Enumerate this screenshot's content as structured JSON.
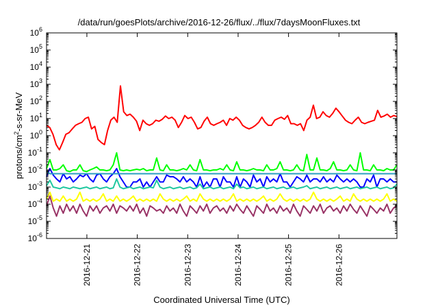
{
  "chart_data": {
    "type": "line",
    "title": "/data/run/goesPlots/archive/2016-12-26/flux/../flux/7daysMoonFluxes.txt",
    "xlabel": "Coordinated Universal Time (UTC)",
    "ylabel": {
      "prefix": "protons/cm",
      "sup": "2",
      "suffix": "-s-sr-MeV"
    },
    "yscale": "log",
    "ylim": [
      1e-06,
      1000000.0
    ],
    "xlim_days": [
      0,
      6.95
    ],
    "y_ticks": [
      {
        "base": "10",
        "exp": "-6",
        "value": 1e-06
      },
      {
        "base": "10",
        "exp": "-5",
        "value": 1e-05
      },
      {
        "base": "10",
        "exp": "-4",
        "value": 0.0001
      },
      {
        "base": "10",
        "exp": "-3",
        "value": 0.001
      },
      {
        "base": "10",
        "exp": "-2",
        "value": 0.01
      },
      {
        "base": "10",
        "exp": "-1",
        "value": 0.1
      },
      {
        "base": "10",
        "exp": "0",
        "value": 1
      },
      {
        "base": "10",
        "exp": "1",
        "value": 10
      },
      {
        "base": "10",
        "exp": "2",
        "value": 100
      },
      {
        "base": "10",
        "exp": "3",
        "value": 1000
      },
      {
        "base": "10",
        "exp": "4",
        "value": 10000
      },
      {
        "base": "10",
        "exp": "5",
        "value": 100000
      },
      {
        "base": "10",
        "exp": "6",
        "value": 1000000
      }
    ],
    "x_ticks": [
      {
        "label": "2016-12-21",
        "day": 0.8
      },
      {
        "label": "2016-12-22",
        "day": 1.8
      },
      {
        "label": "2016-12-23",
        "day": 2.8
      },
      {
        "label": "2016-12-24",
        "day": 3.8
      },
      {
        "label": "2016-12-25",
        "day": 4.8
      },
      {
        "label": "2016-12-26",
        "day": 5.8
      }
    ],
    "grid": false,
    "series": [
      {
        "color": "#ff0000",
        "values": [
          4,
          3,
          1.2,
          0.3,
          0.15,
          0.4,
          1.2,
          1.5,
          2.5,
          4,
          5,
          6,
          10,
          12,
          2.5,
          3.5,
          0.6,
          0.4,
          0.3,
          2,
          8,
          12,
          6,
          800,
          25,
          15,
          18,
          12,
          7,
          2,
          8,
          5,
          4,
          5,
          8,
          7,
          9,
          14,
          10,
          12,
          8,
          3,
          6,
          15,
          10,
          12,
          6,
          2.5,
          3,
          7,
          12,
          5,
          4,
          5,
          6,
          8,
          4,
          10,
          8,
          12,
          8,
          4,
          3,
          2.5,
          3,
          4,
          6,
          12,
          6,
          4,
          4,
          8,
          10,
          12,
          9,
          15,
          5,
          5,
          4,
          5,
          2,
          8,
          12,
          60,
          10,
          12,
          25,
          15,
          12,
          20,
          40,
          25,
          14,
          8,
          6,
          5,
          8,
          12,
          6,
          5,
          6,
          7,
          8,
          30,
          12,
          14,
          18,
          12,
          15,
          13
        ]
      },
      {
        "color": "#00ff00",
        "values": [
          0.012,
          0.04,
          0.01,
          0.01,
          0.012,
          0.02,
          0.009,
          0.008,
          0.01,
          0.01,
          0.02,
          0.009,
          0.008,
          0.01,
          0.012,
          0.015,
          0.01,
          0.01,
          0.009,
          0.01,
          0.02,
          0.1,
          0.01,
          0.009,
          0.01,
          0.009,
          0.01,
          0.011,
          0.01,
          0.012,
          0.009,
          0.01,
          0.01,
          0.05,
          0.01,
          0.009,
          0.02,
          0.01,
          0.01,
          0.009,
          0.01,
          0.012,
          0.01,
          0.02,
          0.01,
          0.009,
          0.04,
          0.01,
          0.01,
          0.009,
          0.01,
          0.01,
          0.012,
          0.01,
          0.02,
          0.01,
          0.009,
          0.03,
          0.01,
          0.01,
          0.009,
          0.01,
          0.012,
          0.01,
          0.01,
          0.009,
          0.02,
          0.01,
          0.01,
          0.012,
          0.03,
          0.01,
          0.01,
          0.009,
          0.01,
          0.02,
          0.01,
          0.009,
          0.08,
          0.01,
          0.01,
          0.05,
          0.01,
          0.01,
          0.009,
          0.012,
          0.03,
          0.01,
          0.01,
          0.009,
          0.01,
          0.02,
          0.01,
          0.009,
          0.1,
          0.01,
          0.01,
          0.009,
          0.02,
          0.01,
          0.01,
          0.009,
          0.012,
          0.01,
          0.01,
          0.02
        ]
      },
      {
        "color": "#0000ff",
        "values": [
          0.004,
          0.012,
          0.005,
          0.003,
          0.002,
          0.006,
          0.003,
          0.004,
          0.002,
          0.003,
          0.005,
          0.004,
          0.006,
          0.003,
          0.002,
          0.005,
          0.006,
          0.003,
          0.002,
          0.004,
          0.006,
          0.012,
          0.004,
          0.002,
          0.001,
          0.001,
          0.002,
          0.002,
          0.003,
          0.001,
          0.002,
          0.001,
          0.002,
          0.004,
          0.002,
          0.002,
          0.005,
          0.004,
          0.004,
          0.003,
          0.002,
          0.004,
          0.002,
          0.003,
          0.002,
          0.001,
          0.004,
          0.001,
          0.002,
          0.001,
          0.003,
          0.003,
          0.001,
          0.004,
          0.002,
          0.002,
          0.001,
          0.004,
          0.001,
          0.003,
          0.002,
          0.001,
          0.005,
          0.002,
          0.003,
          0.001,
          0.004,
          0.002,
          0.003,
          0.002,
          0.006,
          0.002,
          0.002,
          0.001,
          0.002,
          0.004,
          0.003,
          0.002,
          0.005,
          0.002,
          0.003,
          0.003,
          0.002,
          0.004,
          0.002,
          0.003,
          0.002,
          0.005,
          0.003,
          0.002,
          0.003,
          0.002,
          0.003,
          0.002,
          0.001,
          0.001,
          0.003,
          0.002,
          0.005,
          0.001,
          0.003,
          0.003,
          0.002,
          0.003,
          0.002,
          0.002
        ]
      },
      {
        "color": "#2a9ec0",
        "values": [
          0.008,
          0.006,
          0.006,
          0.006,
          0.006,
          0.006,
          0.006,
          0.006,
          0.006,
          0.006,
          0.006,
          0.006,
          0.006,
          0.006,
          0.006,
          0.006,
          0.006,
          0.006,
          0.006,
          0.006,
          0.006,
          0.006,
          0.006,
          0.006,
          0.006,
          0.006,
          0.006,
          0.006,
          0.006,
          0.006,
          0.006,
          0.006,
          0.006,
          0.006,
          0.006,
          0.006,
          0.006,
          0.006,
          0.006,
          0.006,
          0.006,
          0.006,
          0.006,
          0.006,
          0.006,
          0.006,
          0.006,
          0.006,
          0.006,
          0.006,
          0.006,
          0.006,
          0.006,
          0.006,
          0.006,
          0.006,
          0.006,
          0.006,
          0.006,
          0.006,
          0.006,
          0.006,
          0.006,
          0.006,
          0.006,
          0.006,
          0.006,
          0.006,
          0.006,
          0.006,
          0.006,
          0.006,
          0.006,
          0.006,
          0.006,
          0.006,
          0.006,
          0.006,
          0.006,
          0.006,
          0.006,
          0.006,
          0.006,
          0.006,
          0.006,
          0.006,
          0.006,
          0.006,
          0.006,
          0.006,
          0.006,
          0.006,
          0.006,
          0.006,
          0.006,
          0.006,
          0.006,
          0.006,
          0.006,
          0.006,
          0.006,
          0.006,
          0.006,
          0.006,
          0.006,
          0.006
        ]
      },
      {
        "color": "#20c8a0",
        "values": [
          0.0012,
          0.0025,
          0.001,
          0.0009,
          0.0008,
          0.001,
          0.0009,
          0.0008,
          0.001,
          0.0009,
          0.0008,
          0.0009,
          0.001,
          0.0008,
          0.0009,
          0.001,
          0.0008,
          0.0009,
          0.001,
          0.0008,
          0.0009,
          0.003,
          0.001,
          0.0008,
          0.0009,
          0.001,
          0.0008,
          0.0009,
          0.001,
          0.0008,
          0.0009,
          0.001,
          0.0009,
          0.0025,
          0.001,
          0.0008,
          0.0009,
          0.001,
          0.0008,
          0.0009,
          0.001,
          0.0008,
          0.0009,
          0.001,
          0.0008,
          0.0009,
          0.0015,
          0.0008,
          0.0009,
          0.001,
          0.0008,
          0.0009,
          0.001,
          0.0008,
          0.0009,
          0.001,
          0.0008,
          0.0015,
          0.0009,
          0.001,
          0.0008,
          0.0009,
          0.001,
          0.0008,
          0.0009,
          0.001,
          0.0008,
          0.0009,
          0.001,
          0.0008,
          0.0009,
          0.001,
          0.0008,
          0.0009,
          0.001,
          0.0008,
          0.0009,
          0.001,
          0.0012,
          0.0008,
          0.0009,
          0.001,
          0.0008,
          0.0009,
          0.001,
          0.0008,
          0.0009,
          0.001,
          0.0008,
          0.0009,
          0.001,
          0.0008,
          0.0009,
          0.001,
          0.0008,
          0.0009,
          0.001,
          0.0008,
          0.0009,
          0.001,
          0.0008,
          0.0009,
          0.001,
          0.0008,
          0.0009,
          0.0015
        ]
      },
      {
        "color": "#ffff00",
        "values": [
          0.0002,
          0.0005,
          0.00015,
          0.0002,
          0.00015,
          0.0003,
          0.00015,
          0.0002,
          0.00015,
          0.0002,
          0.0005,
          0.00015,
          0.0002,
          0.00015,
          0.0002,
          0.00015,
          0.0002,
          0.0004,
          0.00015,
          0.0002,
          0.00015,
          0.0003,
          0.00015,
          0.0002,
          0.00015,
          0.0002,
          0.0003,
          0.00015,
          0.0002,
          0.00015,
          0.0002,
          0.00015,
          0.0002,
          0.00015,
          0.0004,
          0.0002,
          0.00015,
          0.0002,
          0.00015,
          0.0002,
          0.00015,
          0.0002,
          0.0003,
          0.00015,
          0.0002,
          0.00015,
          0.0004,
          0.0002,
          0.00015,
          0.0002,
          0.00015,
          0.0002,
          0.00015,
          0.0002,
          0.00015,
          0.0002,
          0.0004,
          0.00015,
          0.0002,
          0.00015,
          0.0002,
          0.00015,
          0.0002,
          0.00015,
          0.0002,
          0.0003,
          0.00015,
          0.0002,
          0.00015,
          0.0002,
          0.0004,
          0.0002,
          0.00015,
          0.0002,
          0.00015,
          0.0002,
          0.00015,
          0.0002,
          0.00015,
          0.0002,
          0.0005,
          0.0002,
          0.00015,
          0.0002,
          0.00015,
          0.0002,
          0.00015,
          0.0002,
          0.0003,
          0.00015,
          0.0002,
          0.00015,
          0.0004,
          0.0002,
          0.00015,
          0.0002,
          0.00015,
          0.0002,
          0.00015,
          0.0002,
          0.00015,
          0.0002,
          0.0004,
          0.00015,
          0.0002,
          0.00015
        ]
      },
      {
        "color": "#993366",
        "values": [
          8e-05,
          0.0003,
          6e-05,
          2e-05,
          8e-05,
          3e-05,
          0.0001,
          4e-05,
          8e-05,
          3e-05,
          0.0001,
          4e-05,
          2e-05,
          8e-05,
          4e-05,
          8e-05,
          3e-05,
          6e-05,
          8e-05,
          4e-05,
          0.0001,
          3e-05,
          8e-05,
          6e-05,
          4e-05,
          8e-05,
          4e-05,
          0.0001,
          3e-05,
          6e-05,
          2e-05,
          8e-05,
          6e-05,
          4e-05,
          5e-05,
          3e-05,
          8e-05,
          4e-05,
          6e-05,
          3e-05,
          0.0001,
          4e-05,
          2e-05,
          8e-05,
          5e-05,
          3e-05,
          8e-05,
          4e-05,
          0.0001,
          3e-05,
          6e-05,
          8e-05,
          4e-05,
          6e-05,
          3e-05,
          8e-05,
          4e-05,
          0.0001,
          5e-05,
          3e-05,
          8e-05,
          4e-05,
          2e-05,
          8e-05,
          5e-05,
          3e-05,
          0.0001,
          4e-05,
          6e-05,
          3e-05,
          8e-05,
          4e-05,
          6e-05,
          3e-05,
          0.0001,
          4e-05,
          2e-05,
          8e-05,
          5e-05,
          3e-05,
          8e-05,
          4e-05,
          0.0001,
          3e-05,
          6e-05,
          8e-05,
          4e-05,
          6e-05,
          3e-05,
          8e-05,
          4e-05,
          0.0001,
          5e-05,
          3e-05,
          8e-05,
          4e-05,
          2e-05,
          8e-05,
          5e-05,
          3e-05,
          6e-05,
          4e-05,
          0.0001,
          3e-05,
          6e-05,
          8e-05
        ]
      }
    ]
  }
}
